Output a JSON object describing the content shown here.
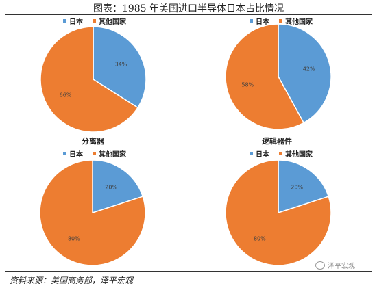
{
  "title": "图表：1985 年美国进口半导体日本占比情况",
  "source": "资料来源：美国商务部，泽平宏观",
  "watermark": "泽平宏观",
  "colors": {
    "japan": "#5b9bd5",
    "other": "#ed7d31"
  },
  "legend": [
    "日本",
    "其他国家"
  ],
  "chart_data": [
    {
      "type": "pie",
      "title": "",
      "labels": [
        "日本",
        "其他国家"
      ],
      "values": [
        34,
        66
      ],
      "value_labels": [
        "34%",
        "66%"
      ],
      "caption": "分离器"
    },
    {
      "type": "pie",
      "title": "",
      "labels": [
        "日本",
        "其他国家"
      ],
      "values": [
        42,
        58
      ],
      "value_labels": [
        "42%",
        "58%"
      ],
      "caption": "逻辑器件"
    },
    {
      "type": "pie",
      "title": "",
      "labels": [
        "日本",
        "其他国家"
      ],
      "values": [
        20,
        80
      ],
      "value_labels": [
        "20%",
        "80%"
      ],
      "caption": ""
    },
    {
      "type": "pie",
      "title": "",
      "labels": [
        "日本",
        "其他国家"
      ],
      "values": [
        20,
        80
      ],
      "value_labels": [
        "20%",
        "80%"
      ],
      "caption": ""
    }
  ]
}
